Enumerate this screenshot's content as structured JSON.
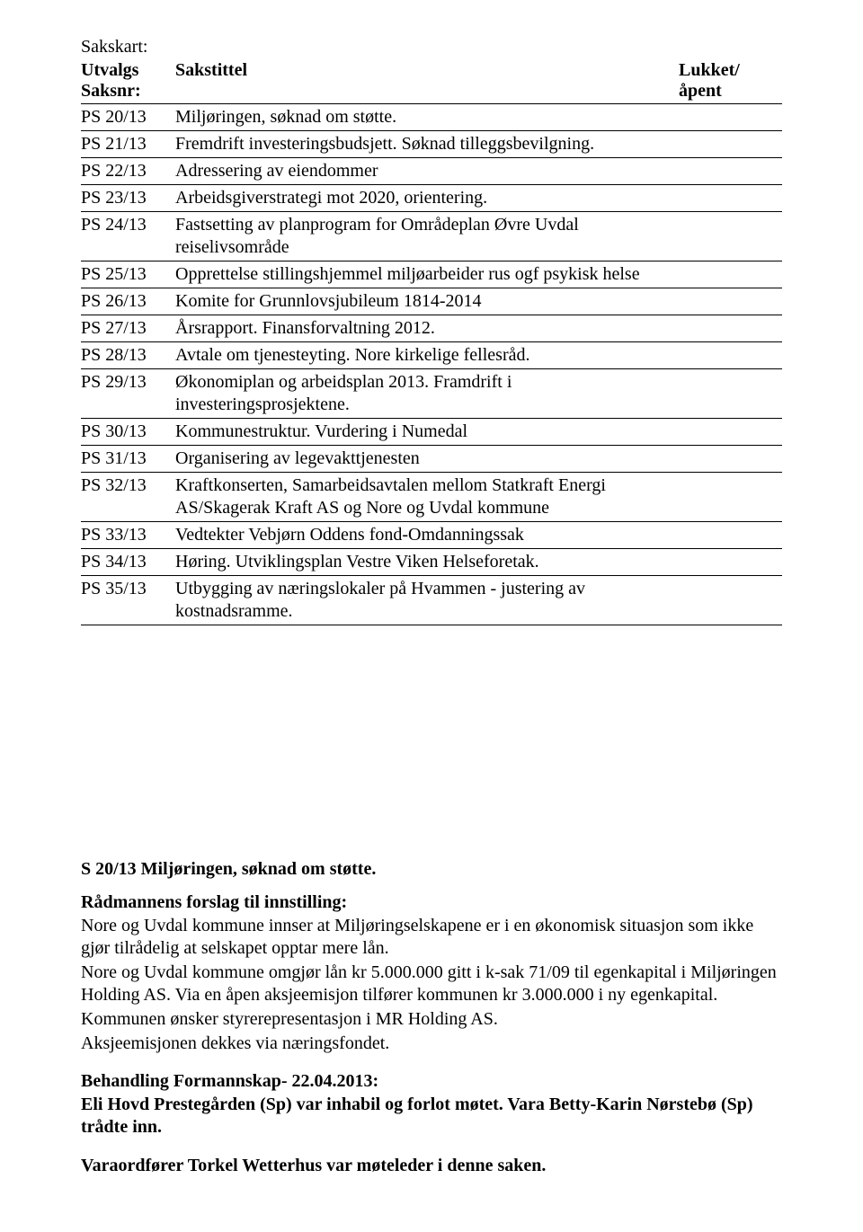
{
  "header": {
    "sakskart_label": "Sakskart:",
    "col_num_line1": "Utvalgs",
    "col_num_line2": "Saksnr:",
    "col_title": "Sakstittel",
    "col_lock": "Lukket/åpent"
  },
  "rows": [
    {
      "num": "PS 20/13",
      "title": "Miljøringen, søknad om støtte."
    },
    {
      "num": "PS 21/13",
      "title": "Fremdrift investeringsbudsjett. Søknad tilleggsbevilgning."
    },
    {
      "num": "PS 22/13",
      "title": "Adressering av eiendommer"
    },
    {
      "num": "PS 23/13",
      "title": "Arbeidsgiverstrategi mot 2020, orientering."
    },
    {
      "num": "PS 24/13",
      "title": "Fastsetting av planprogram for Områdeplan Øvre Uvdal reiselivsområde"
    },
    {
      "num": "PS 25/13",
      "title": "Opprettelse stillingshjemmel miljøarbeider rus ogf psykisk helse"
    },
    {
      "num": "PS 26/13",
      "title": "Komite for Grunnlovsjubileum 1814-2014"
    },
    {
      "num": "PS 27/13",
      "title": "Årsrapport. Finansforvaltning 2012."
    },
    {
      "num": "PS 28/13",
      "title": "Avtale om tjenesteyting. Nore kirkelige fellesråd."
    },
    {
      "num": "PS 29/13",
      "title": "Økonomiplan og arbeidsplan 2013. Framdrift i investeringsprosjektene."
    },
    {
      "num": "PS 30/13",
      "title": "Kommunestruktur. Vurdering i Numedal"
    },
    {
      "num": "PS 31/13",
      "title": "Organisering av legevakttjenesten"
    },
    {
      "num": "PS 32/13",
      "title": "Kraftkonserten, Samarbeidsavtalen mellom Statkraft Energi AS/Skagerak Kraft AS og Nore og Uvdal kommune"
    },
    {
      "num": "PS 33/13",
      "title": "Vedtekter Vebjørn Oddens fond-Omdanningssak"
    },
    {
      "num": "PS 34/13",
      "title": "Høring. Utviklingsplan Vestre Viken Helseforetak."
    },
    {
      "num": "PS 35/13",
      "title": "Utbygging av næringslokaler på Hvammen - justering av kostnadsramme."
    }
  ],
  "case": {
    "heading": "S 20/13 Miljøringen, søknad om støtte.",
    "proposal_heading": "Rådmannens forslag til innstilling:",
    "p1": "Nore og Uvdal kommune innser at Miljøringselskapene er i en økonomisk situasjon som ikke gjør tilrådelig at selskapet opptar mere lån.",
    "p2": "Nore og Uvdal kommune omgjør lån kr 5.000.000 gitt i k-sak 71/09  til egenkapital i Miljøringen Holding AS. Via en åpen aksjeemisjon tilfører kommunen kr 3.000.000 i ny egenkapital.",
    "p3": "Kommunen ønsker styrerepresentasjon i MR Holding AS.",
    "p4": "Aksjeemisjonen dekkes via næringsfondet.",
    "behandling_heading": "Behandling   Formannskap- 22.04.2013:",
    "b1": "Eli Hovd Prestegården (Sp) var inhabil og forlot møtet. Vara Betty-Karin Nørstebø (Sp) trådte inn.",
    "b2": "Varaordfører Torkel Wetterhus var møteleder i denne saken."
  }
}
